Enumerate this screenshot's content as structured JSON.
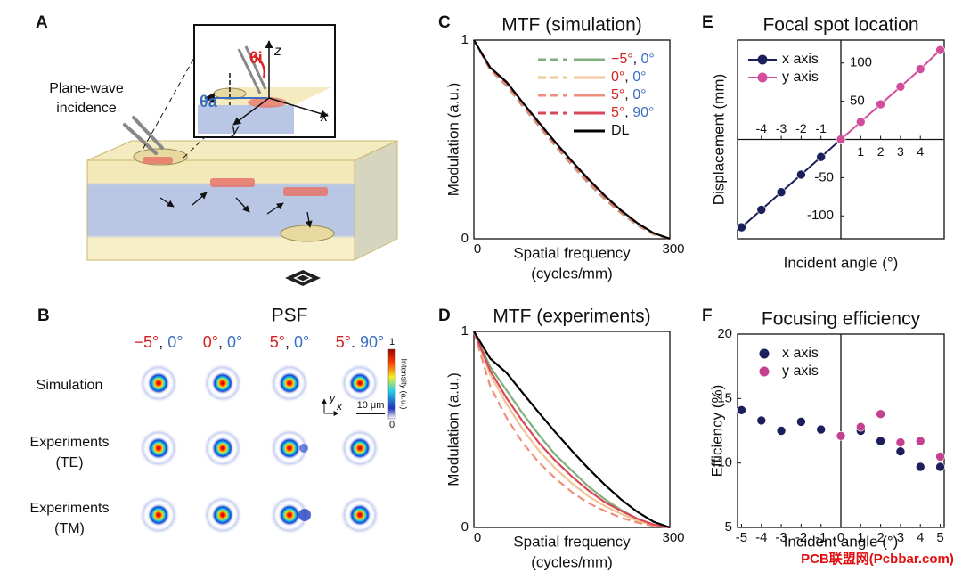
{
  "panels": {
    "a": "A",
    "b": "B",
    "c": "C",
    "d": "D",
    "e": "E",
    "f": "F"
  },
  "schematic": {
    "incidence": [
      "Plane-wave",
      "incidence"
    ],
    "theta_i": "θi",
    "theta_a": "θa",
    "z": "z",
    "x": "x",
    "y": "y"
  },
  "psf": {
    "title": "PSF",
    "columns": [
      "−5°, 0°",
      "0°, 0°",
      "5°, 0°",
      "5°. 90°"
    ],
    "rows": [
      [
        "Simulation"
      ],
      [
        "Experiments",
        "(TE)"
      ],
      [
        "Experiments",
        "(TM)"
      ]
    ],
    "colorbar": {
      "max": "1",
      "min": "0",
      "label": "Intensity (a.u.)"
    },
    "scale_bar": "10 μm",
    "axis_x": "x",
    "axis_y": "y"
  },
  "watermark": "PCB联盟网(Pcbbar.com)",
  "chart_data": [
    {
      "type": "line",
      "title": "MTF (simulation)",
      "xlabel": [
        "Spatial frequency",
        "(cycles/mm)"
      ],
      "ylabel": "Modulation (a.u.)",
      "x": [
        0,
        25,
        50,
        75,
        100,
        125,
        150,
        175,
        200,
        225,
        250,
        275,
        300
      ],
      "xlim": [
        0,
        300
      ],
      "xticks": [
        0,
        300
      ],
      "ylim": [
        0,
        1
      ],
      "yticks": [
        0,
        1
      ],
      "legend": "upper right",
      "series": [
        {
          "name": "−5°, 0°",
          "color": "#7fb07c",
          "dash": true,
          "values": [
            1,
            0.85,
            0.77,
            0.665,
            0.565,
            0.465,
            0.37,
            0.28,
            0.2,
            0.13,
            0.068,
            0.022,
            0
          ]
        },
        {
          "name": "0°, 0°",
          "color": "#f3c495",
          "dash": true,
          "values": [
            1,
            0.855,
            0.78,
            0.675,
            0.575,
            0.475,
            0.38,
            0.29,
            0.21,
            0.137,
            0.074,
            0.025,
            0
          ]
        },
        {
          "name": "5°, 0°",
          "color": "#ee8f7c",
          "dash": true,
          "values": [
            1,
            0.85,
            0.775,
            0.67,
            0.57,
            0.47,
            0.375,
            0.286,
            0.205,
            0.134,
            0.072,
            0.024,
            0
          ]
        },
        {
          "name": "5°, 90°",
          "color": "#d8475a",
          "dash": true,
          "values": [
            1,
            0.86,
            0.785,
            0.68,
            0.58,
            0.48,
            0.386,
            0.297,
            0.215,
            0.14,
            0.078,
            0.028,
            0
          ]
        },
        {
          "name": "DL",
          "color": "#000000",
          "values": [
            1,
            0.862,
            0.789,
            0.685,
            0.584,
            0.485,
            0.391,
            0.302,
            0.219,
            0.144,
            0.08,
            0.029,
            0
          ]
        }
      ]
    },
    {
      "type": "line",
      "title": "MTF (experiments)",
      "xlabel": [
        "Spatial frequency",
        "(cycles/mm)"
      ],
      "ylabel": "Modulation (a.u.)",
      "x": [
        0,
        25,
        50,
        75,
        100,
        125,
        150,
        175,
        200,
        225,
        250,
        275,
        300
      ],
      "xlim": [
        0,
        300
      ],
      "xticks": [
        0,
        300
      ],
      "ylim": [
        0,
        1
      ],
      "yticks": [
        0,
        1
      ],
      "series": [
        {
          "color": "#7fb07c",
          "values": [
            1,
            0.82,
            0.7,
            0.58,
            0.47,
            0.37,
            0.29,
            0.21,
            0.145,
            0.09,
            0.045,
            0.012,
            0
          ]
        },
        {
          "color": "#f3c495",
          "values": [
            1,
            0.78,
            0.63,
            0.5,
            0.39,
            0.3,
            0.225,
            0.16,
            0.11,
            0.07,
            0.035,
            0.01,
            0
          ]
        },
        {
          "color": "#ee8f7c",
          "dash": true,
          "values": [
            1,
            0.72,
            0.56,
            0.43,
            0.33,
            0.25,
            0.18,
            0.125,
            0.085,
            0.05,
            0.025,
            0.008,
            0
          ]
        },
        {
          "color": "#d8475a",
          "values": [
            1,
            0.8,
            0.66,
            0.54,
            0.43,
            0.34,
            0.26,
            0.19,
            0.13,
            0.085,
            0.045,
            0.015,
            0
          ]
        },
        {
          "color": "#000000",
          "values": [
            1,
            0.862,
            0.789,
            0.685,
            0.584,
            0.485,
            0.391,
            0.302,
            0.219,
            0.144,
            0.08,
            0.029,
            0
          ]
        }
      ]
    },
    {
      "type": "line",
      "markers": true,
      "axes_through_origin": true,
      "title": "Focal spot location",
      "xlabel": [
        "Incident angle (°)"
      ],
      "ylabel": "Displacement (mm)",
      "xlim": [
        -5.2,
        5.2
      ],
      "xticks": [
        -4,
        -3,
        -2,
        -1,
        1,
        2,
        3,
        4
      ],
      "ylim": [
        -130,
        130
      ],
      "yticks": [
        -100,
        -50,
        50,
        100
      ],
      "legend": "upper left",
      "series": [
        {
          "name": "x axis",
          "color": "#1b1f5c",
          "x": [
            -5,
            -4,
            -3,
            -2,
            -1,
            0
          ],
          "values": [
            -115,
            -92,
            -69,
            -46,
            -23,
            0
          ]
        },
        {
          "name": "y axis",
          "color": "#d24d9c",
          "x": [
            0,
            1,
            2,
            3,
            4,
            5
          ],
          "values": [
            0,
            23,
            46,
            69,
            92,
            117
          ]
        }
      ]
    },
    {
      "type": "scatter",
      "zero_line_x": true,
      "title": "Focusing efficiency",
      "xlabel": [
        "Incident angle (°)"
      ],
      "ylabel": "Efficiency (%)",
      "xlim": [
        -5.2,
        5.2
      ],
      "xticks": [
        -5,
        -4,
        -3,
        -2,
        -1,
        0,
        1,
        2,
        3,
        4,
        5
      ],
      "ylim": [
        5,
        20
      ],
      "yticks": [
        5,
        10,
        15,
        20
      ],
      "legend": "upper left",
      "series": [
        {
          "name": "x axis",
          "color": "#1b1f5c",
          "x": [
            -5,
            -4,
            -3,
            -2,
            -1,
            0,
            1,
            2,
            3,
            4,
            5
          ],
          "values": [
            14.1,
            13.3,
            12.5,
            13.2,
            12.6,
            12.1,
            12.5,
            11.7,
            10.9,
            9.7,
            9.7
          ]
        },
        {
          "name": "y axis",
          "color": "#c4418f",
          "x": [
            0,
            1,
            2,
            3,
            4,
            5
          ],
          "values": [
            12.1,
            12.8,
            13.8,
            11.6,
            11.7,
            10.5
          ]
        }
      ]
    }
  ]
}
